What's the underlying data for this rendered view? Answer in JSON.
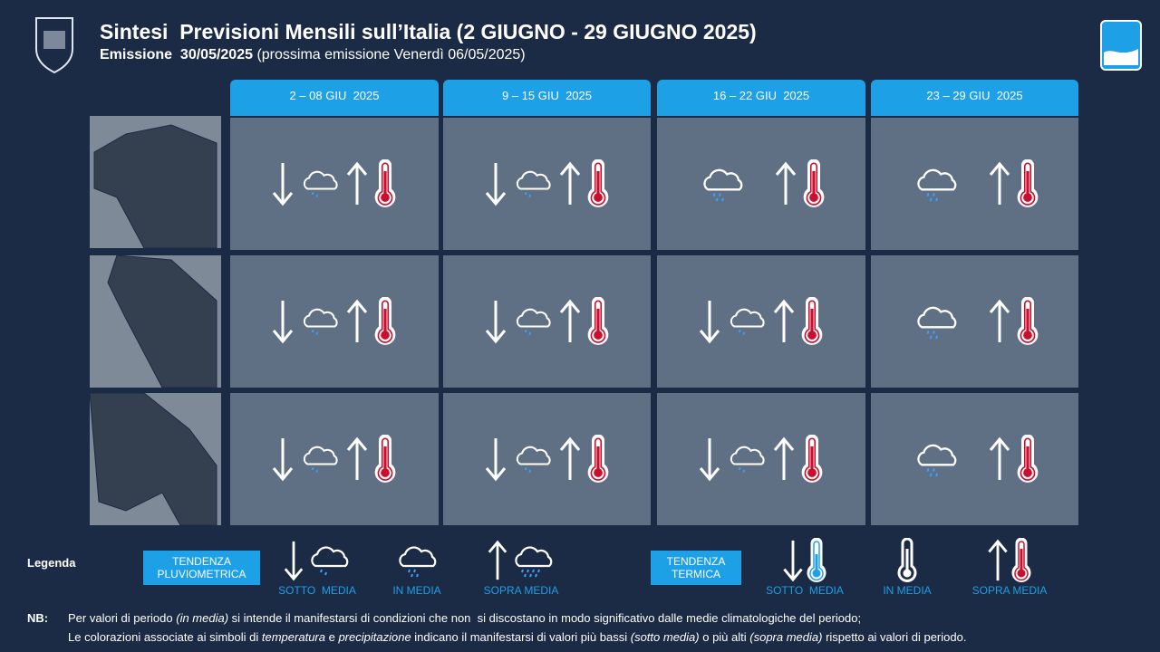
{
  "header": {
    "title": "Sintesi  Previsioni Mensili sull’Italia (2 GIUGNO - 29 GIUGNO 2025)",
    "issue_label": "Emissione  30/05/2025",
    "issue_note": " (prossima emissione Venerdì 06/05/2025)"
  },
  "periods": [
    "2 – 08 GIU  2025",
    "9 – 15 GIU  2025",
    "16 – 22 GIU  2025",
    "23 – 29 GIU  2025"
  ],
  "legend": {
    "title": "Legenda",
    "rain_box": "TENDENZA PLUVIOMETRICA",
    "temp_box": "TENDENZA TERMICA",
    "rain_labels": [
      "SOTTO  MEDIA",
      "IN MEDIA",
      "SOPRA MEDIA"
    ],
    "temp_labels": [
      "SOTTO  MEDIA",
      "IN MEDIA",
      "SOPRA MEDIA"
    ]
  },
  "note": {
    "label": "NB:",
    "line1": [
      "Per valori di periodo ",
      "(in media)",
      " si intende il manifestarsi di condizioni che non  si discostano in modo significativo dalle medie climatologiche del periodo;"
    ],
    "line2": [
      "Le colorazioni associate ai simboli di ",
      "temperatura",
      " e ",
      "precipitazione",
      " indicano il manifestarsi di valori più bassi ",
      "(sotto media)",
      " o più alti ",
      "(sopra media)",
      " rispetto ai valori di periodo."
    ]
  }
}
